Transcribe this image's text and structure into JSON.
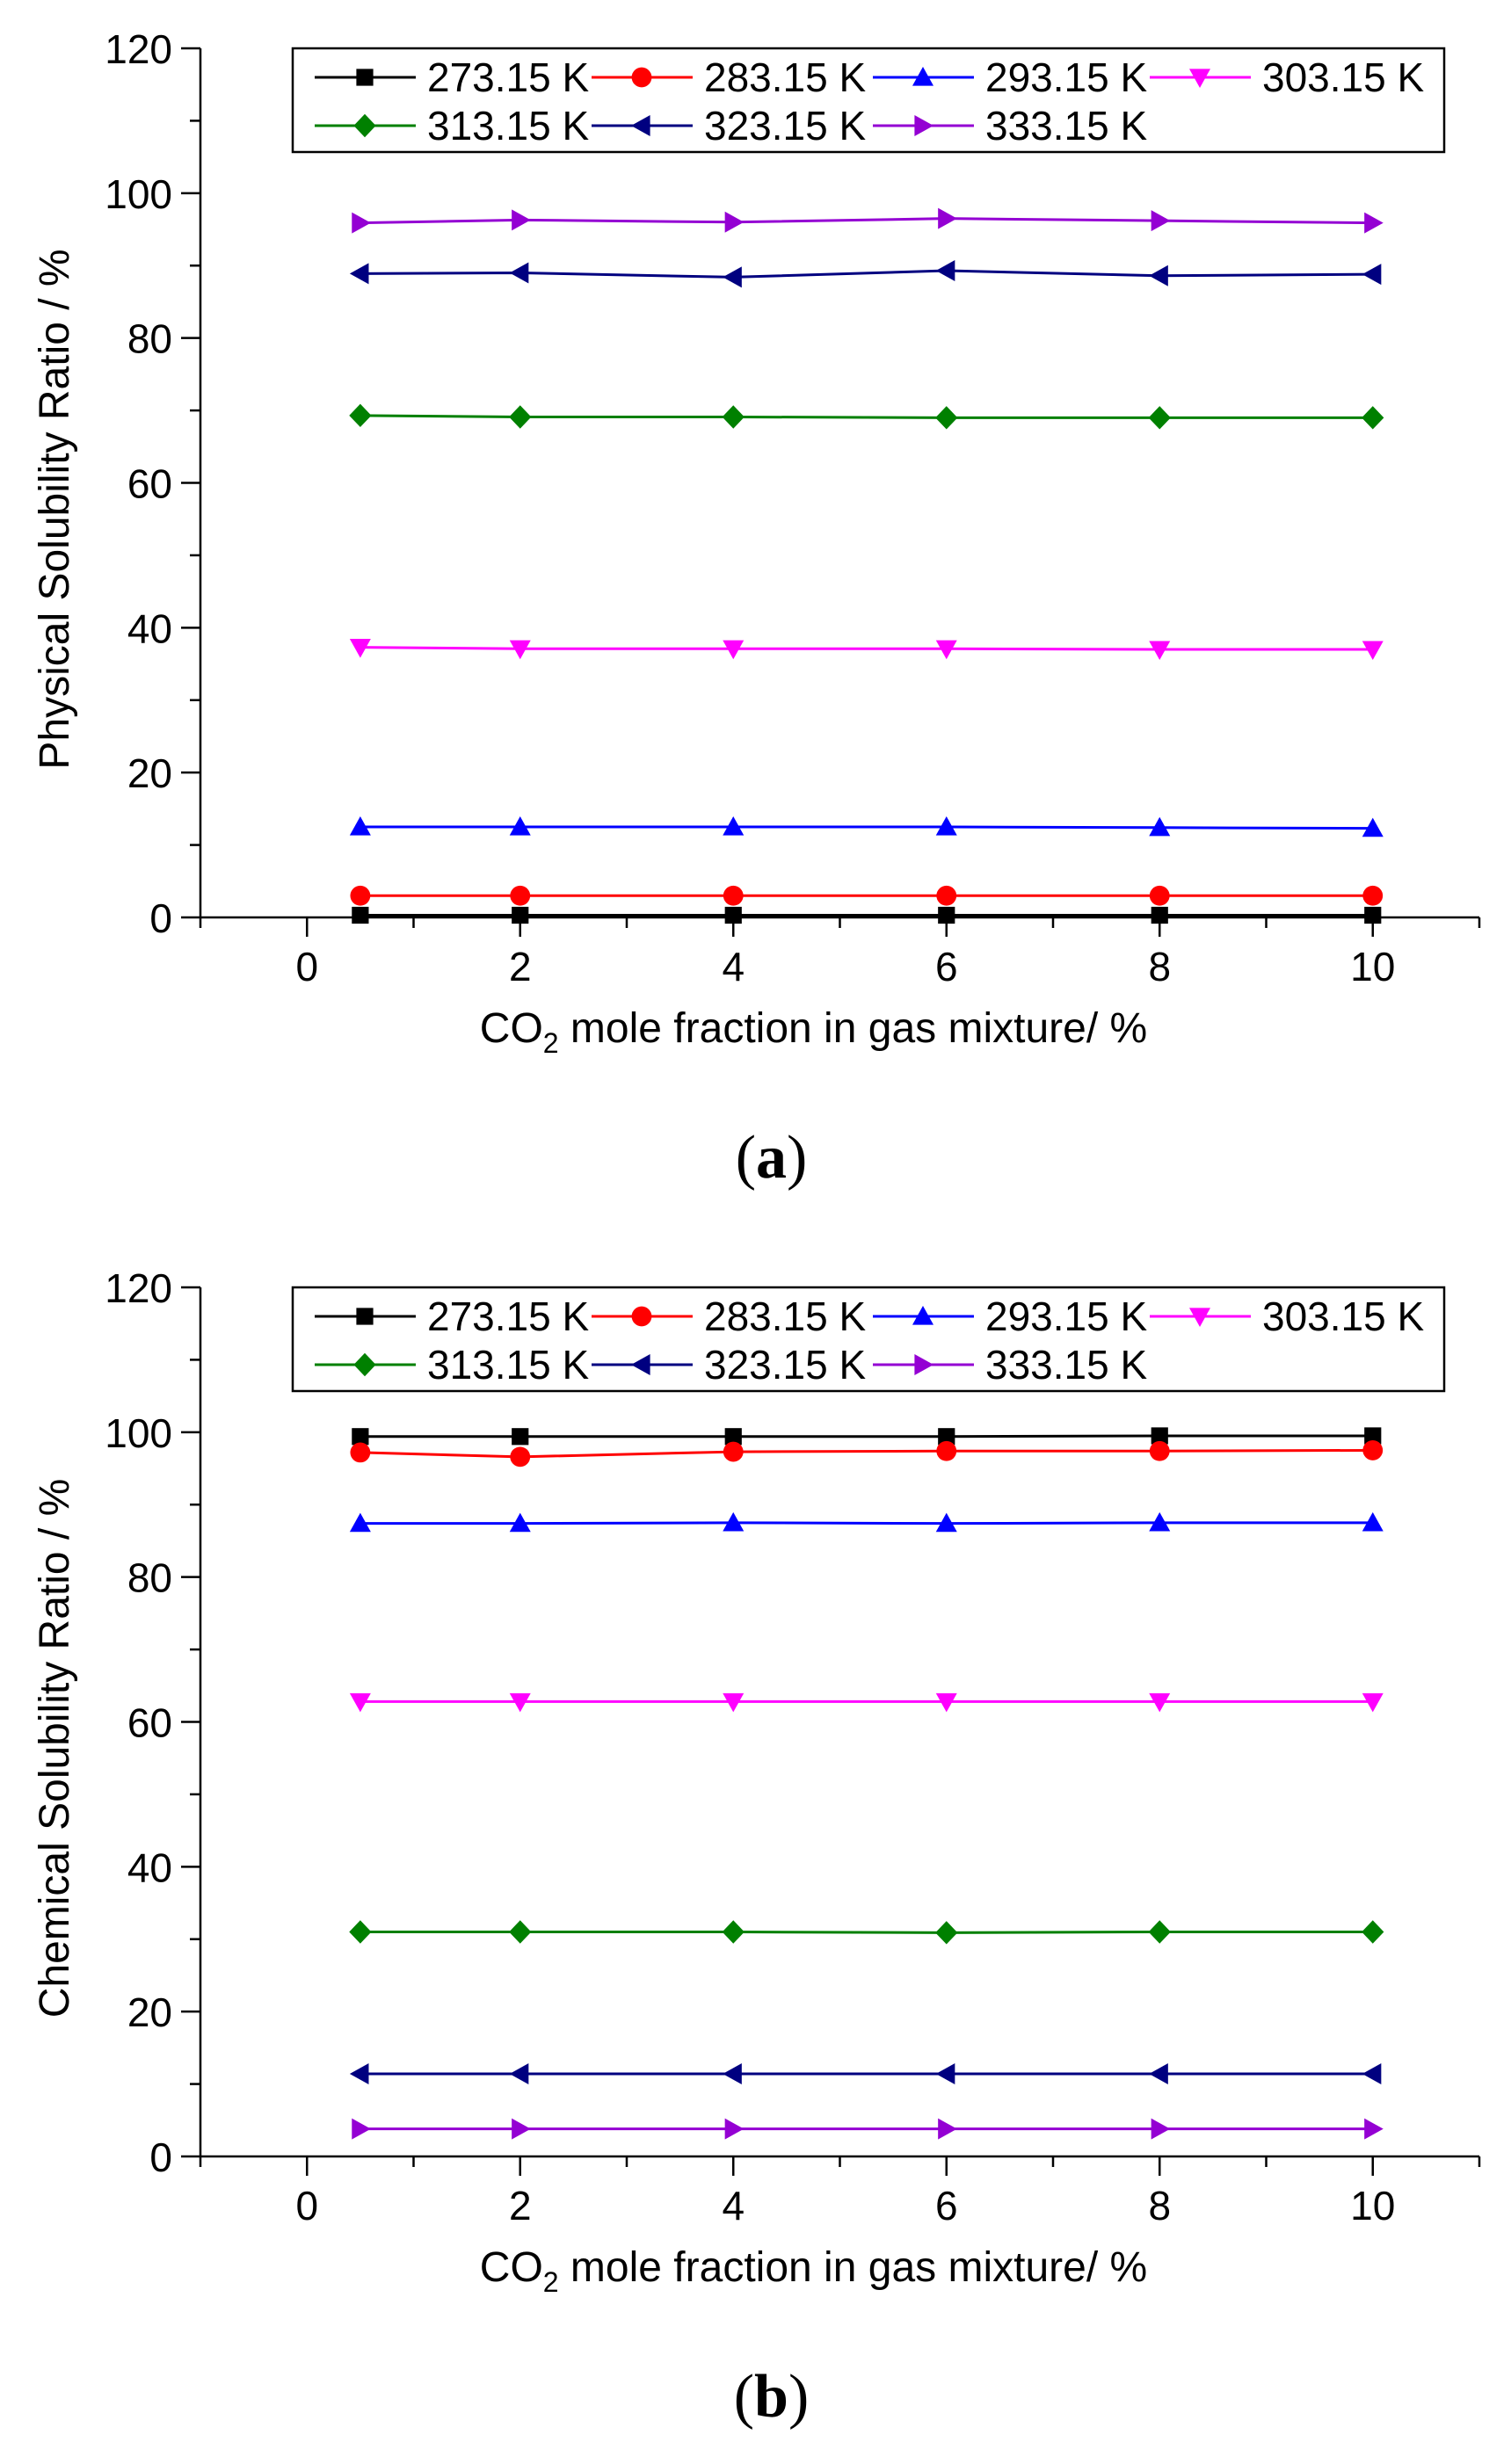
{
  "chart_data": [
    {
      "type": "line",
      "panel_label": "a",
      "ylabel": "Physical Solubility Ratio / %",
      "xlabel_prefix": "CO",
      "xlabel_sub": "2",
      "xlabel_suffix": " mole fraction in gas mixture/ %",
      "xlim": [
        -1,
        11
      ],
      "ylim": [
        0,
        120
      ],
      "x_ticks": [
        "0",
        "2",
        "4",
        "6",
        "8",
        "10"
      ],
      "y_ticks": [
        "0",
        "20",
        "40",
        "60",
        "80",
        "100",
        "120"
      ],
      "x": [
        0.5,
        2,
        4,
        6,
        8,
        10
      ],
      "legend_position": "top",
      "series": [
        {
          "name": "273.15 K",
          "color": "#000000",
          "marker": "square",
          "values": [
            0.3,
            0.3,
            0.3,
            0.3,
            0.3,
            0.3
          ]
        },
        {
          "name": "283.15 K",
          "color": "#ff0000",
          "marker": "circle",
          "values": [
            3.0,
            3.0,
            3.0,
            3.0,
            3.0,
            3.0
          ]
        },
        {
          "name": "293.15 K",
          "color": "#0000ff",
          "marker": "triangle-up",
          "values": [
            12.5,
            12.5,
            12.5,
            12.5,
            12.4,
            12.3
          ]
        },
        {
          "name": "303.15 K",
          "color": "#ff00ff",
          "marker": "triangle-down",
          "values": [
            37.3,
            37.1,
            37.1,
            37.1,
            37.0,
            37.0
          ]
        },
        {
          "name": "313.15 K",
          "color": "#008000",
          "marker": "diamond",
          "values": [
            69.3,
            69.1,
            69.1,
            69.0,
            69.0,
            69.0
          ]
        },
        {
          "name": "323.15 K",
          "color": "#000080",
          "marker": "triangle-left",
          "values": [
            88.9,
            89.0,
            88.4,
            89.3,
            88.6,
            88.8
          ]
        },
        {
          "name": "333.15 K",
          "color": "#9400d3",
          "marker": "triangle-right",
          "values": [
            95.9,
            96.3,
            96.0,
            96.5,
            96.2,
            95.9
          ]
        }
      ]
    },
    {
      "type": "line",
      "panel_label": "b",
      "ylabel": "Chemical Solubility Ratio / %",
      "xlabel_prefix": "CO",
      "xlabel_sub": "2",
      "xlabel_suffix": " mole fraction in gas mixture/ %",
      "xlim": [
        -1,
        11
      ],
      "ylim": [
        0,
        120
      ],
      "x_ticks": [
        "0",
        "2",
        "4",
        "6",
        "8",
        "10"
      ],
      "y_ticks": [
        "0",
        "20",
        "40",
        "60",
        "80",
        "100",
        "120"
      ],
      "x": [
        0.5,
        2,
        4,
        6,
        8,
        10
      ],
      "legend_position": "top",
      "series": [
        {
          "name": "273.15 K",
          "color": "#000000",
          "marker": "square",
          "values": [
            99.4,
            99.4,
            99.4,
            99.4,
            99.5,
            99.5
          ]
        },
        {
          "name": "283.15 K",
          "color": "#ff0000",
          "marker": "circle",
          "values": [
            97.2,
            96.6,
            97.3,
            97.4,
            97.4,
            97.5
          ]
        },
        {
          "name": "293.15 K",
          "color": "#0000ff",
          "marker": "triangle-up",
          "values": [
            87.4,
            87.4,
            87.5,
            87.4,
            87.5,
            87.5
          ]
        },
        {
          "name": "303.15 K",
          "color": "#ff00ff",
          "marker": "triangle-down",
          "values": [
            62.8,
            62.8,
            62.8,
            62.8,
            62.8,
            62.8
          ]
        },
        {
          "name": "313.15 K",
          "color": "#008000",
          "marker": "diamond",
          "values": [
            31.0,
            31.0,
            31.0,
            30.9,
            31.0,
            31.0
          ]
        },
        {
          "name": "323.15 K",
          "color": "#000080",
          "marker": "triangle-left",
          "values": [
            11.4,
            11.4,
            11.4,
            11.4,
            11.4,
            11.4
          ]
        },
        {
          "name": "333.15 K",
          "color": "#9400d3",
          "marker": "triangle-right",
          "values": [
            3.8,
            3.8,
            3.8,
            3.8,
            3.8,
            3.8
          ]
        }
      ]
    }
  ]
}
